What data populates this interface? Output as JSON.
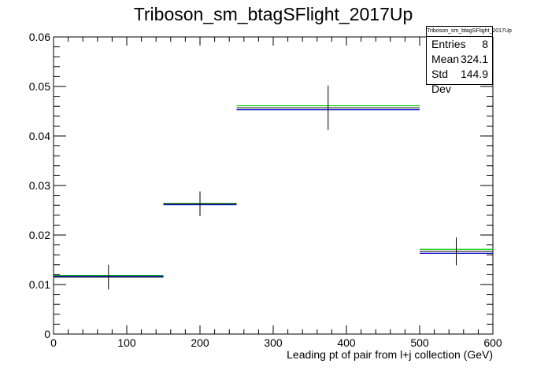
{
  "chart_data": {
    "type": "histogram",
    "title": "Triboson_sm_btagSFlight_2017Up",
    "xlabel": "Leading pt of pair from l+j collection (GeV)",
    "ylabel": "",
    "xlim": [
      0,
      600
    ],
    "ylim": [
      0,
      0.06
    ],
    "x_ticks": [
      0,
      100,
      200,
      300,
      400,
      500,
      600
    ],
    "y_ticks": [
      0,
      0.01,
      0.02,
      0.03,
      0.04,
      0.05,
      0.06
    ],
    "y_tick_labels": [
      "0",
      "0.01",
      "0.02",
      "0.03",
      "0.04",
      "0.05",
      "0.06"
    ],
    "grid": false,
    "bins": [
      {
        "x_low": 0,
        "x_high": 150,
        "x_center": 75,
        "value": 0.0115,
        "error": 0.0025
      },
      {
        "x_low": 150,
        "x_high": 250,
        "x_center": 200,
        "value": 0.0263,
        "error": 0.0025
      },
      {
        "x_low": 250,
        "x_high": 500,
        "x_center": 375,
        "value": 0.0457,
        "error": 0.0045
      },
      {
        "x_low": 500,
        "x_high": 600,
        "x_center": 550,
        "value": 0.0167,
        "error": 0.0028
      }
    ],
    "series": [
      {
        "role": "nominal",
        "color": "#000000",
        "values": [
          0.0115,
          0.0263,
          0.0457,
          0.0167
        ]
      },
      {
        "role": "up",
        "color": "#00cc00",
        "values": [
          0.0118,
          0.0264,
          0.0461,
          0.0171
        ]
      },
      {
        "role": "down",
        "color": "#0000cc",
        "values": [
          0.0117,
          0.0261,
          0.0453,
          0.0163
        ]
      }
    ],
    "stats_box": {
      "title": "Triboson_sm_btagSFlight_2017Up",
      "entries_label": "Entries",
      "entries": "8",
      "mean_label": "Mean",
      "mean": "324.1",
      "stddev_label": "Std Dev",
      "stddev": "144.9"
    }
  }
}
